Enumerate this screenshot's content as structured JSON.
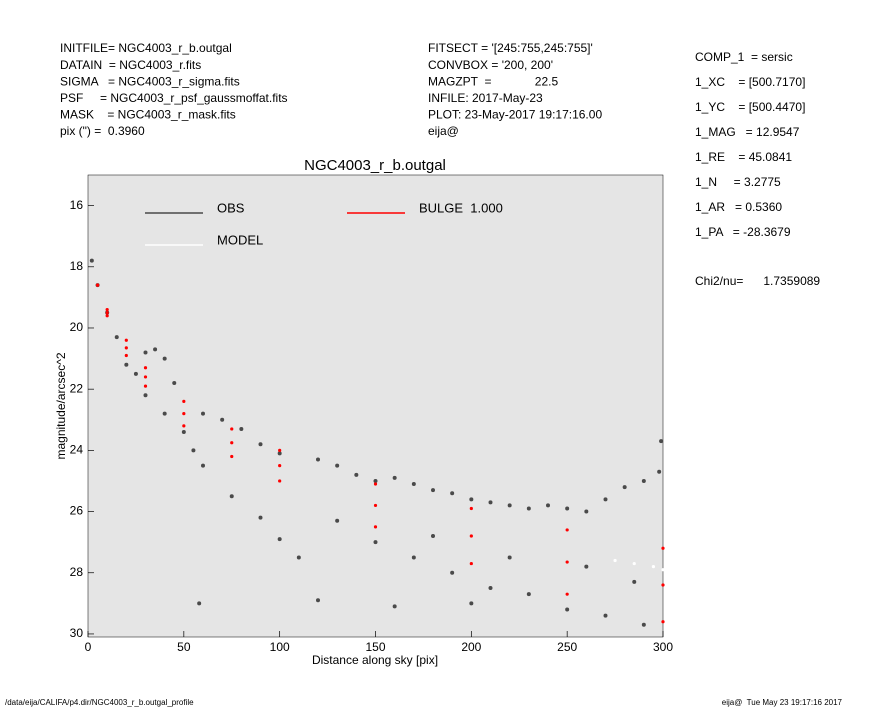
{
  "header": {
    "left": [
      "INITFILE= NGC4003_r_b.outgal",
      "DATAIN  = NGC4003_r.fits",
      "SIGMA   = NGC4003_r_sigma.fits",
      "PSF     = NGC4003_r_psf_gaussmoffat.fits",
      "MASK    = NGC4003_r_mask.fits",
      "pix (\") =  0.3960"
    ],
    "middle": [
      "FITSECT = '[245:755,245:755]'",
      "CONVBOX = '200, 200'",
      "MAGZPT  =             22.5",
      "INFILE: 2017-May-23",
      "PLOT: 23-May-2017 19:17:16.00",
      "eija@"
    ],
    "right": [
      "COMP_1  = sersic",
      "1_XC    = [500.7170]",
      "1_YC    = [500.4470]",
      "1_MAG   = 12.9547",
      "1_RE    = 45.0841",
      "1_N     = 3.2775",
      "1_AR   = 0.5360",
      "1_PA   = -28.3679"
    ],
    "chi": "Chi2/nu=      1.7359089"
  },
  "footer": {
    "left": "/data/eija/CALIFA/p4.dir/NGC4003_r_b.outgal_profile",
    "right": "eija@  Tue May 23 19:17:16 2017"
  },
  "chart_data": {
    "type": "scatter",
    "title": "NGC4003_r_b.outgal",
    "x_label": "Distance along sky [pix]",
    "y_label": "magnitude/arcsec^2",
    "xlim": [
      0,
      300
    ],
    "xticks": [
      0,
      50,
      100,
      150,
      200,
      250,
      300
    ],
    "ylim": [
      30.1,
      15
    ],
    "yticks": [
      16,
      18,
      20,
      22,
      24,
      26,
      28,
      30
    ],
    "series": [
      {
        "name": "OBS",
        "color": "#4a4a4a",
        "x": [
          2,
          5,
          10,
          15,
          20,
          25,
          30,
          35,
          40,
          45,
          30,
          40,
          50,
          55,
          60,
          60,
          70,
          80,
          90,
          100,
          75,
          90,
          100,
          110,
          58,
          120,
          130,
          140,
          150,
          160,
          170,
          180,
          190,
          200,
          210,
          220,
          230,
          240,
          250,
          260,
          270,
          280,
          290,
          298,
          299,
          130,
          150,
          170,
          190,
          210,
          230,
          250,
          270,
          290,
          120,
          160,
          200,
          180,
          220,
          260,
          285
        ],
        "values": [
          17.8,
          18.6,
          19.5,
          20.3,
          21.2,
          21.5,
          20.8,
          20.7,
          21.0,
          21.8,
          22.2,
          22.8,
          23.4,
          24.0,
          24.5,
          22.8,
          23.0,
          23.3,
          23.8,
          24.1,
          25.5,
          26.2,
          26.9,
          27.5,
          29.0,
          24.3,
          24.5,
          24.8,
          25.0,
          24.9,
          25.1,
          25.3,
          25.4,
          25.6,
          25.7,
          25.8,
          25.9,
          25.8,
          25.9,
          26.0,
          25.6,
          25.2,
          25.0,
          24.7,
          23.7,
          26.3,
          27.0,
          27.5,
          28.0,
          28.5,
          28.7,
          29.2,
          29.4,
          29.7,
          28.9,
          29.1,
          29.0,
          26.8,
          27.5,
          27.8,
          28.3
        ]
      },
      {
        "name": "MODEL",
        "color": "#ffffff",
        "x": [
          275,
          285,
          295,
          300
        ],
        "values": [
          27.6,
          27.7,
          27.8,
          27.9
        ]
      },
      {
        "name": "BULGE  1.000",
        "color": "#ff0000",
        "x": [
          5,
          10,
          20,
          30,
          50,
          75,
          100,
          150,
          200,
          250,
          300,
          5,
          10,
          20,
          30,
          50,
          75,
          100,
          150,
          200,
          250,
          300,
          10,
          20,
          30,
          50,
          75,
          100,
          150,
          200,
          250,
          300
        ],
        "values": [
          18.6,
          19.4,
          20.4,
          21.3,
          22.4,
          23.3,
          24.0,
          25.1,
          25.9,
          26.6,
          27.2,
          18.6,
          19.6,
          20.9,
          21.9,
          23.2,
          24.2,
          25.0,
          26.5,
          27.7,
          28.7,
          29.6,
          19.5,
          20.65,
          21.6,
          22.8,
          23.75,
          24.5,
          25.8,
          26.8,
          27.65,
          28.4
        ]
      }
    ]
  }
}
